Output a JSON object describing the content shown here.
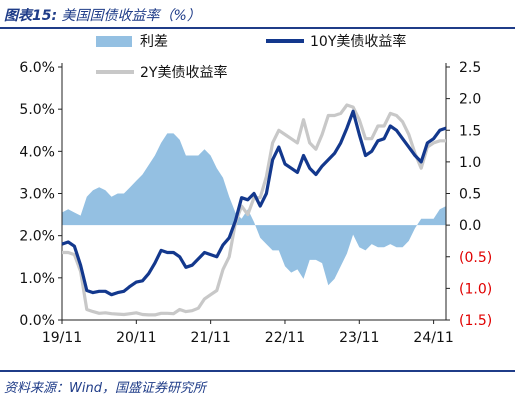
{
  "header": {
    "figure_label": "图表15:",
    "figure_title": "美国国债收益率（%）"
  },
  "footer": {
    "source": "资料来源：Wind，国盛证券研究所"
  },
  "colors": {
    "spread": "#94c0e2",
    "y10": "#13388d",
    "y2": "#c8c8c8",
    "negative_tick": "#e00000",
    "title": "#1f3c88"
  },
  "chart_data": {
    "type": "line",
    "legend_placement": "top",
    "grid": false,
    "x_ticks": [
      "19/11",
      "20/11",
      "21/11",
      "22/11",
      "23/11",
      "24/11"
    ],
    "x_range": [
      "2019-11",
      "2025-01"
    ],
    "y_left": {
      "range": [
        0,
        6
      ],
      "tick_labels": [
        "0.0%",
        "1.0%",
        "2.0%",
        "3.0%",
        "4.0%",
        "5.0%",
        "6.0%"
      ]
    },
    "y_right": {
      "range": [
        -1.5,
        2.5
      ],
      "tick_labels": [
        "(1.5)",
        "(1.0)",
        "(0.5)",
        "0.0",
        "0.5",
        "1.0",
        "1.5",
        "2.0",
        "2.5"
      ]
    },
    "series": [
      {
        "name": "利差",
        "type": "area",
        "axis": "right",
        "dates": [
          "2019-11",
          "2019-12",
          "2020-01",
          "2020-02",
          "2020-03",
          "2020-04",
          "2020-05",
          "2020-06",
          "2020-07",
          "2020-08",
          "2020-09",
          "2020-10",
          "2020-11",
          "2020-12",
          "2021-01",
          "2021-02",
          "2021-03",
          "2021-04",
          "2021-05",
          "2021-06",
          "2021-07",
          "2021-08",
          "2021-09",
          "2021-10",
          "2021-11",
          "2021-12",
          "2022-01",
          "2022-02",
          "2022-03",
          "2022-04",
          "2022-05",
          "2022-06",
          "2022-07",
          "2022-08",
          "2022-09",
          "2022-10",
          "2022-11",
          "2022-12",
          "2023-01",
          "2023-02",
          "2023-03",
          "2023-04",
          "2023-05",
          "2023-06",
          "2023-07",
          "2023-08",
          "2023-09",
          "2023-10",
          "2023-11",
          "2023-12",
          "2024-01",
          "2024-02",
          "2024-03",
          "2024-04",
          "2024-05",
          "2024-06",
          "2024-07",
          "2024-08",
          "2024-09",
          "2024-10",
          "2024-11",
          "2024-12",
          "2025-01"
        ],
        "values": [
          0.2,
          0.25,
          0.2,
          0.15,
          0.45,
          0.55,
          0.6,
          0.55,
          0.45,
          0.5,
          0.5,
          0.6,
          0.7,
          0.8,
          0.95,
          1.1,
          1.3,
          1.45,
          1.45,
          1.35,
          1.1,
          1.1,
          1.1,
          1.2,
          1.1,
          0.9,
          0.75,
          0.45,
          0.2,
          0.1,
          0.25,
          0.05,
          -0.2,
          -0.3,
          -0.4,
          -0.4,
          -0.65,
          -0.75,
          -0.7,
          -0.85,
          -0.55,
          -0.55,
          -0.6,
          -0.95,
          -0.85,
          -0.65,
          -0.45,
          -0.15,
          -0.35,
          -0.4,
          -0.3,
          -0.35,
          -0.35,
          -0.3,
          -0.35,
          -0.35,
          -0.25,
          -0.05,
          0.1,
          0.1,
          0.1,
          0.25,
          0.3
        ]
      },
      {
        "name": "10Y美债收益率",
        "type": "line",
        "axis": "left",
        "dates": [
          "2019-11",
          "2019-12",
          "2020-01",
          "2020-02",
          "2020-03",
          "2020-04",
          "2020-05",
          "2020-06",
          "2020-07",
          "2020-08",
          "2020-09",
          "2020-10",
          "2020-11",
          "2020-12",
          "2021-01",
          "2021-02",
          "2021-03",
          "2021-04",
          "2021-05",
          "2021-06",
          "2021-07",
          "2021-08",
          "2021-09",
          "2021-10",
          "2021-11",
          "2021-12",
          "2022-01",
          "2022-02",
          "2022-03",
          "2022-04",
          "2022-05",
          "2022-06",
          "2022-07",
          "2022-08",
          "2022-09",
          "2022-10",
          "2022-11",
          "2022-12",
          "2023-01",
          "2023-02",
          "2023-03",
          "2023-04",
          "2023-05",
          "2023-06",
          "2023-07",
          "2023-08",
          "2023-09",
          "2023-10",
          "2023-11",
          "2023-12",
          "2024-01",
          "2024-02",
          "2024-03",
          "2024-04",
          "2024-05",
          "2024-06",
          "2024-07",
          "2024-08",
          "2024-09",
          "2024-10",
          "2024-11",
          "2024-12",
          "2025-01"
        ],
        "values": [
          1.8,
          1.85,
          1.75,
          1.3,
          0.7,
          0.65,
          0.68,
          0.68,
          0.6,
          0.65,
          0.68,
          0.8,
          0.9,
          0.93,
          1.1,
          1.35,
          1.65,
          1.6,
          1.6,
          1.5,
          1.25,
          1.3,
          1.45,
          1.6,
          1.55,
          1.5,
          1.78,
          1.95,
          2.35,
          2.9,
          2.85,
          3.0,
          2.7,
          3.0,
          3.8,
          4.1,
          3.7,
          3.6,
          3.5,
          3.9,
          3.6,
          3.45,
          3.65,
          3.8,
          3.95,
          4.2,
          4.55,
          4.95,
          4.4,
          3.9,
          4.0,
          4.25,
          4.3,
          4.6,
          4.5,
          4.3,
          4.1,
          3.9,
          3.75,
          4.2,
          4.3,
          4.5,
          4.55
        ]
      },
      {
        "name": "2Y美债收益率",
        "type": "line",
        "axis": "left",
        "dates": [
          "2019-11",
          "2019-12",
          "2020-01",
          "2020-02",
          "2020-03",
          "2020-04",
          "2020-05",
          "2020-06",
          "2020-07",
          "2020-08",
          "2020-09",
          "2020-10",
          "2020-11",
          "2020-12",
          "2021-01",
          "2021-02",
          "2021-03",
          "2021-04",
          "2021-05",
          "2021-06",
          "2021-07",
          "2021-08",
          "2021-09",
          "2021-10",
          "2021-11",
          "2021-12",
          "2022-01",
          "2022-02",
          "2022-03",
          "2022-04",
          "2022-05",
          "2022-06",
          "2022-07",
          "2022-08",
          "2022-09",
          "2022-10",
          "2022-11",
          "2022-12",
          "2023-01",
          "2023-02",
          "2023-03",
          "2023-04",
          "2023-05",
          "2023-06",
          "2023-07",
          "2023-08",
          "2023-09",
          "2023-10",
          "2023-11",
          "2023-12",
          "2024-01",
          "2024-02",
          "2024-03",
          "2024-04",
          "2024-05",
          "2024-06",
          "2024-07",
          "2024-08",
          "2024-09",
          "2024-10",
          "2024-11",
          "2024-12",
          "2025-01"
        ],
        "values": [
          1.6,
          1.6,
          1.55,
          1.15,
          0.25,
          0.2,
          0.16,
          0.17,
          0.15,
          0.14,
          0.13,
          0.15,
          0.17,
          0.13,
          0.12,
          0.12,
          0.16,
          0.16,
          0.15,
          0.25,
          0.2,
          0.22,
          0.28,
          0.5,
          0.6,
          0.7,
          1.2,
          1.5,
          2.3,
          2.7,
          2.5,
          2.9,
          2.9,
          3.4,
          4.2,
          4.5,
          4.4,
          4.3,
          4.2,
          4.75,
          4.2,
          4.05,
          4.4,
          4.85,
          4.85,
          4.9,
          5.1,
          5.05,
          4.75,
          4.3,
          4.3,
          4.6,
          4.6,
          4.9,
          4.85,
          4.7,
          4.4,
          3.95,
          3.6,
          4.1,
          4.2,
          4.25,
          4.25
        ]
      }
    ]
  }
}
